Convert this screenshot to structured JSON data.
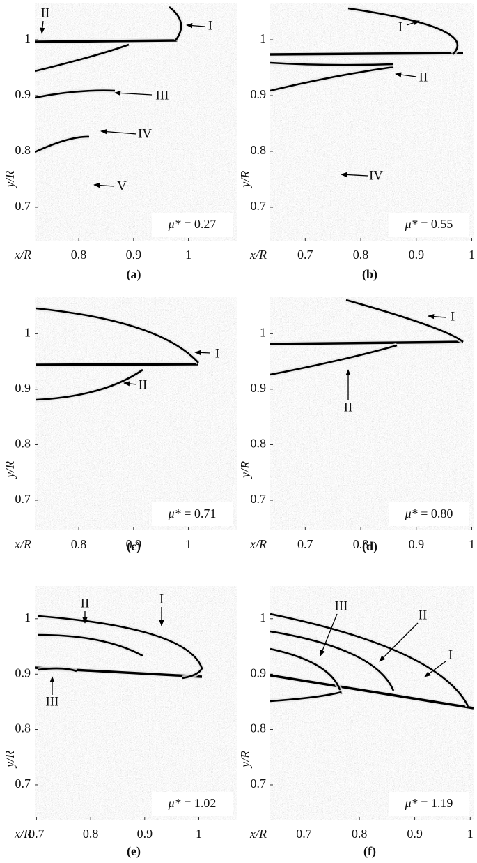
{
  "panels": [
    {
      "label": "(a)",
      "x_label": "x/R",
      "y_label": "y/R",
      "mu_symbol": "μ*",
      "mu_value": "= 0.27",
      "xlim": [
        0.72,
        1.088
      ],
      "ylim": [
        0.64,
        1.065
      ],
      "xticks": [
        0.8,
        0.9,
        1
      ],
      "yticks": [
        1,
        0.9,
        0.8,
        0.7
      ],
      "annotations": [
        "II",
        "I",
        "III",
        "IV",
        "V"
      ]
    },
    {
      "label": "(b)",
      "x_label": "x/R",
      "y_label": "y/R",
      "mu_symbol": "μ*",
      "mu_value": "= 0.55",
      "xlim": [
        0.637,
        1.003
      ],
      "ylim": [
        0.64,
        1.065
      ],
      "xticks": [
        0.7,
        0.8,
        0.9,
        1
      ],
      "yticks": [
        1,
        0.9,
        0.8,
        0.7
      ],
      "annotations": [
        "I",
        "II",
        "IV"
      ]
    },
    {
      "label": "(c)",
      "x_label": "x/R",
      "y_label": "y/R",
      "mu_symbol": "μ*",
      "mu_value": "= 0.71",
      "xlim": [
        0.72,
        1.088
      ],
      "ylim": [
        0.646,
        1.067
      ],
      "xticks": [
        0.8,
        0.9,
        1
      ],
      "yticks": [
        1,
        0.9,
        0.8,
        0.7
      ],
      "annotations": [
        "I",
        "II"
      ]
    },
    {
      "label": "(d)",
      "x_label": "x/R",
      "y_label": "y/R",
      "mu_symbol": "μ*",
      "mu_value": "= 0.80",
      "xlim": [
        0.637,
        1.003
      ],
      "ylim": [
        0.646,
        1.067
      ],
      "xticks": [
        0.7,
        0.8,
        0.9,
        1
      ],
      "yticks": [
        1,
        0.9,
        0.8,
        0.7
      ],
      "annotations": [
        "I",
        "II"
      ]
    },
    {
      "label": "(e)",
      "x_label": "x/R",
      "y_label": "y/R",
      "mu_symbol": "μ*",
      "mu_value": "= 1.02",
      "xlim": [
        0.697,
        1.07
      ],
      "ylim": [
        0.637,
        1.059
      ],
      "xticks": [
        0.7,
        0.8,
        0.9,
        1
      ],
      "yticks": [
        1,
        0.9,
        0.8,
        0.7
      ],
      "annotations": [
        "II",
        "I",
        "III"
      ]
    },
    {
      "label": "(f)",
      "x_label": "x/R",
      "y_label": "y/R",
      "mu_symbol": "μ*",
      "mu_value": "= 1.19",
      "xlim": [
        0.639,
        1.006
      ],
      "ylim": [
        0.637,
        1.059
      ],
      "xticks": [
        0.7,
        0.8,
        0.9,
        1
      ],
      "yticks": [
        1,
        0.9,
        0.8,
        0.7
      ],
      "annotations": [
        "III",
        "II",
        "I"
      ]
    }
  ]
}
